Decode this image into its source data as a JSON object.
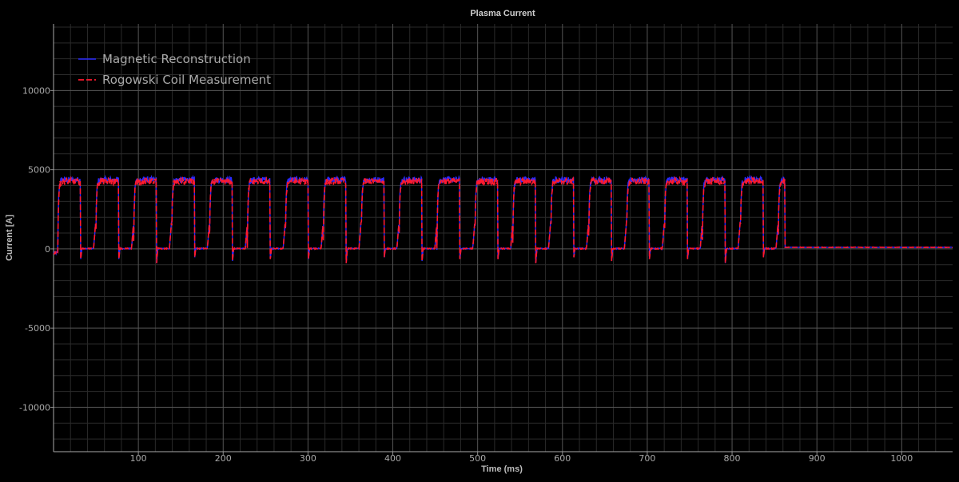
{
  "chart_data": {
    "type": "line",
    "title": "Plasma Current",
    "xlabel": "Time (ms)",
    "ylabel": "Current [A]",
    "xlim": [
      0,
      1060
    ],
    "ylim": [
      -12800,
      14200
    ],
    "xticks": [
      100,
      200,
      300,
      400,
      500,
      600,
      700,
      800,
      900,
      1000
    ],
    "yticks": [
      -10000,
      -5000,
      0,
      5000,
      10000
    ],
    "grid": true,
    "legend_position": "top-left",
    "pulses": {
      "count": 20,
      "period_ms": 44.7,
      "first_rise_ms": 5,
      "on_duration_ms": 27,
      "plateau_a": 4300,
      "undershoot_a": -800,
      "end_ms": 862,
      "tail_level_a": 100
    },
    "series": [
      {
        "name": "Magnetic Reconstruction",
        "color": "#2a2aff",
        "style": "solid"
      },
      {
        "name": "Rogowski Coil Measurement",
        "color": "#ff1a2e",
        "style": "dashed"
      }
    ]
  }
}
